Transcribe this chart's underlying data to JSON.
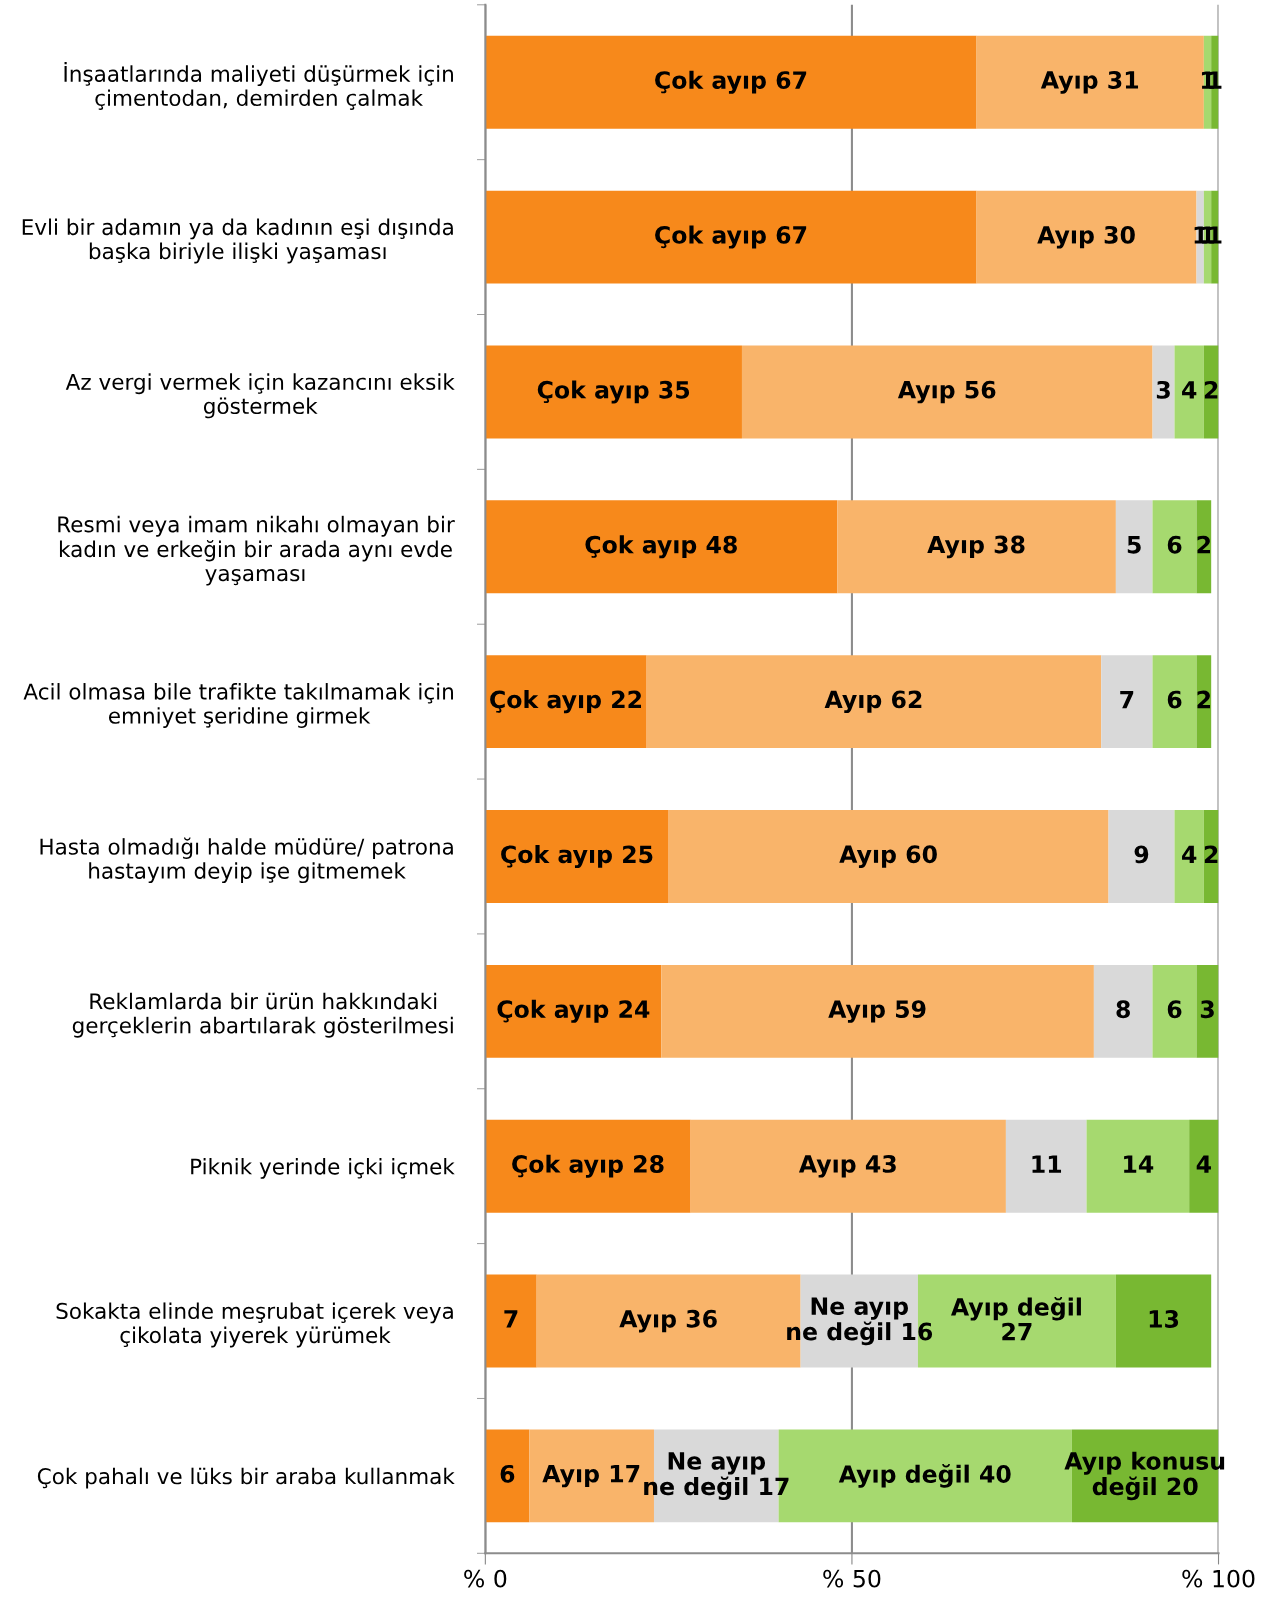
{
  "chart_data": {
    "type": "bar",
    "orientation": "horizontal",
    "stacked": true,
    "categories": [
      "İnşaatlarında maliyeti düşürmek için\nçimentodan, demirden çalmak",
      "Evli bir adamın ya da kadının eşi dışında\nbaşka biriyle ilişki yaşaması",
      "Az vergi vermek için kazancını eksik\ngöstermek",
      "Resmi veya imam nikahı olmayan bir\nkadın ve erkeğin bir arada aynı evde\nyaşaması",
      "Acil olmasa bile trafikte takılmamak için\nemniyet şeridine girmek",
      "Hasta olmadığı halde müdüre/ patrona\nhastayım deyip işe gitmemek",
      "Reklamlarda bir ürün hakkındaki\ngerçeklerin abartılarak gösterilmesi",
      "Piknik yerinde içki içmek",
      "Sokakta elinde meşrubat içerek veya\nçikolata yiyerek yürümek",
      "Çok pahalı ve lüks bir araba kullanmak"
    ],
    "series": [
      {
        "color": "#f7891b",
        "values": [
          67,
          67,
          35,
          48,
          22,
          25,
          24,
          28,
          7,
          6
        ],
        "value_labels": [
          "Çok ayıp 67",
          "Çok ayıp 67",
          "Çok ayıp 35",
          "Çok ayıp 48",
          "Çok ayıp 22",
          "Çok ayıp 25",
          "Çok ayıp 24",
          "Çok ayıp 28",
          "7",
          "6"
        ]
      },
      {
        "color": "#f9b46a",
        "values": [
          31,
          30,
          56,
          38,
          62,
          60,
          59,
          43,
          36,
          17
        ],
        "value_labels": [
          "Ayıp 31",
          "Ayıp 30",
          "Ayıp 56",
          "Ayıp 38",
          "Ayıp 62",
          "Ayıp 60",
          "Ayıp 59",
          "Ayıp 43",
          "Ayıp 36",
          "Ayıp 17"
        ]
      },
      {
        "color": "#d9d9d9",
        "values": [
          null,
          1,
          3,
          5,
          7,
          9,
          8,
          11,
          16,
          17
        ],
        "value_labels": [
          null,
          "1",
          "3",
          "5",
          "7",
          "9",
          "8",
          "11",
          "Ne ayıp\nne değil 16",
          "Ne ayıp\nne değil 17"
        ]
      },
      {
        "color": "#a6d96f",
        "values": [
          1,
          1,
          4,
          6,
          6,
          4,
          6,
          14,
          27,
          40
        ],
        "value_labels": [
          "1",
          "1",
          "4",
          "6",
          "6",
          "4",
          "6",
          "14",
          "Ayıp değil\n27",
          "Ayıp değil 40"
        ]
      },
      {
        "color": "#78b832",
        "values": [
          1,
          1,
          2,
          2,
          2,
          2,
          3,
          4,
          13,
          20
        ],
        "value_labels": [
          "1",
          "1",
          "2",
          "2",
          "2",
          "2",
          "3",
          "4",
          "13",
          "Ayıp konusu\ndeğil 20"
        ]
      }
    ],
    "xlim": [
      0,
      100
    ],
    "xticks": [
      {
        "value": 0,
        "label": "% 0"
      },
      {
        "value": 50,
        "label": "% 50"
      },
      {
        "value": 100,
        "label": "% 100"
      }
    ],
    "grid": "x"
  }
}
